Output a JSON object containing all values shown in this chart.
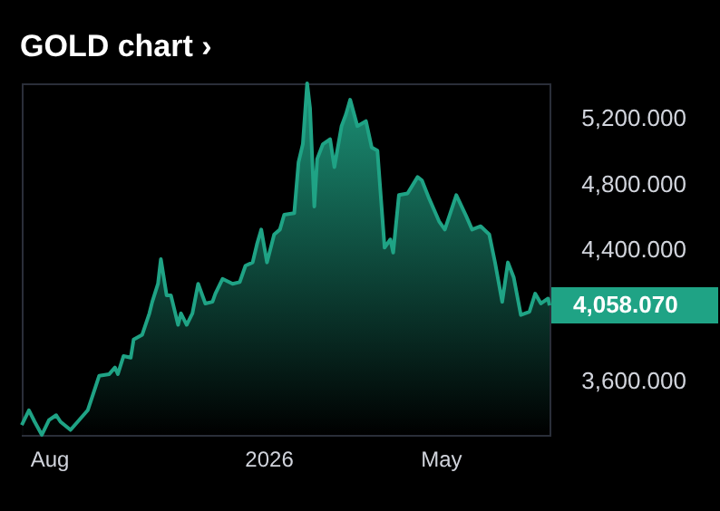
{
  "chart_data": {
    "type": "area",
    "title": "GOLD chart ›",
    "x": [
      "2025-07-13",
      "2025-07-18",
      "2025-07-22",
      "2025-07-27",
      "2025-08-01",
      "2025-08-06",
      "2025-08-09",
      "2025-08-16",
      "2025-08-21",
      "2025-08-28",
      "2025-09-02",
      "2025-09-05",
      "2025-09-12",
      "2025-09-16",
      "2025-09-18",
      "2025-09-22",
      "2025-09-27",
      "2025-09-29",
      "2025-10-05",
      "2025-10-10",
      "2025-10-12",
      "2025-10-16",
      "2025-10-18",
      "2025-10-22",
      "2025-10-25",
      "2025-10-30",
      "2025-11-01",
      "2025-11-05",
      "2025-11-09",
      "2025-11-13",
      "2025-11-18",
      "2025-11-23",
      "2025-11-25",
      "2025-11-30",
      "2025-12-07",
      "2025-12-12",
      "2025-12-16",
      "2025-12-21",
      "2025-12-24",
      "2025-12-27",
      "2025-12-31",
      "2026-01-05",
      "2026-01-09",
      "2026-01-12",
      "2026-01-19",
      "2026-01-22",
      "2026-01-25",
      "2026-01-28",
      "2026-01-30",
      "2026-02-02",
      "2026-02-04",
      "2026-02-08",
      "2026-02-13",
      "2026-02-16",
      "2026-02-21",
      "2026-02-24",
      "2026-02-27",
      "2026-03-04",
      "2026-03-10",
      "2026-03-14",
      "2026-03-18",
      "2026-03-23",
      "2026-03-27",
      "2026-03-29",
      "2026-04-02",
      "2026-04-08",
      "2026-04-15",
      "2026-04-18",
      "2026-04-23",
      "2026-04-30",
      "2026-05-04",
      "2026-05-12",
      "2026-05-19",
      "2026-05-23",
      "2026-05-29",
      "2026-06-04",
      "2026-06-08",
      "2026-06-13",
      "2026-06-17",
      "2026-06-21",
      "2026-06-26",
      "2026-07-02",
      "2026-07-06",
      "2026-07-10",
      "2026-07-15",
      "2026-07-16"
    ],
    "series": [
      {
        "color": "#1fa385",
        "values": [
          3330,
          3420,
          3350,
          3270,
          3360,
          3390,
          3350,
          3300,
          3350,
          3420,
          3550,
          3630,
          3640,
          3680,
          3640,
          3750,
          3740,
          3850,
          3880,
          4010,
          4080,
          4190,
          4340,
          4120,
          4120,
          3940,
          4010,
          3940,
          4010,
          4190,
          4070,
          4080,
          4130,
          4220,
          4190,
          4200,
          4300,
          4320,
          4430,
          4520,
          4320,
          4490,
          4520,
          4610,
          4620,
          4930,
          5040,
          5410,
          5260,
          4660,
          4950,
          5040,
          5070,
          4900,
          5150,
          5220,
          5310,
          5150,
          5180,
          5020,
          5000,
          4410,
          4460,
          4380,
          4730,
          4740,
          4840,
          4820,
          4710,
          4570,
          4520,
          4730,
          4600,
          4520,
          4540,
          4490,
          4320,
          4080,
          4320,
          4230,
          4000,
          4020,
          4130,
          4070,
          4100,
          4058.07
        ]
      }
    ],
    "xlim": [
      "2025-07-13",
      "2026-07-16"
    ],
    "ylim": [
      3270,
      5410
    ],
    "xticks": [
      {
        "value": "2025-08-01",
        "label": "Aug"
      },
      {
        "value": "2026-01-01",
        "label": "2026"
      },
      {
        "value": "2026-05-01",
        "label": "May"
      }
    ],
    "yticks": [
      {
        "value": 3600,
        "label": "3,600.000"
      },
      {
        "value": 4400,
        "label": "4,400.000"
      },
      {
        "value": 4800,
        "label": "4,800.000"
      },
      {
        "value": 5200,
        "label": "5,200.000"
      }
    ],
    "annotations": [
      {
        "text": "4,058.070",
        "x": "2026-07-16",
        "y": 4058.07
      }
    ],
    "grid": false
  }
}
